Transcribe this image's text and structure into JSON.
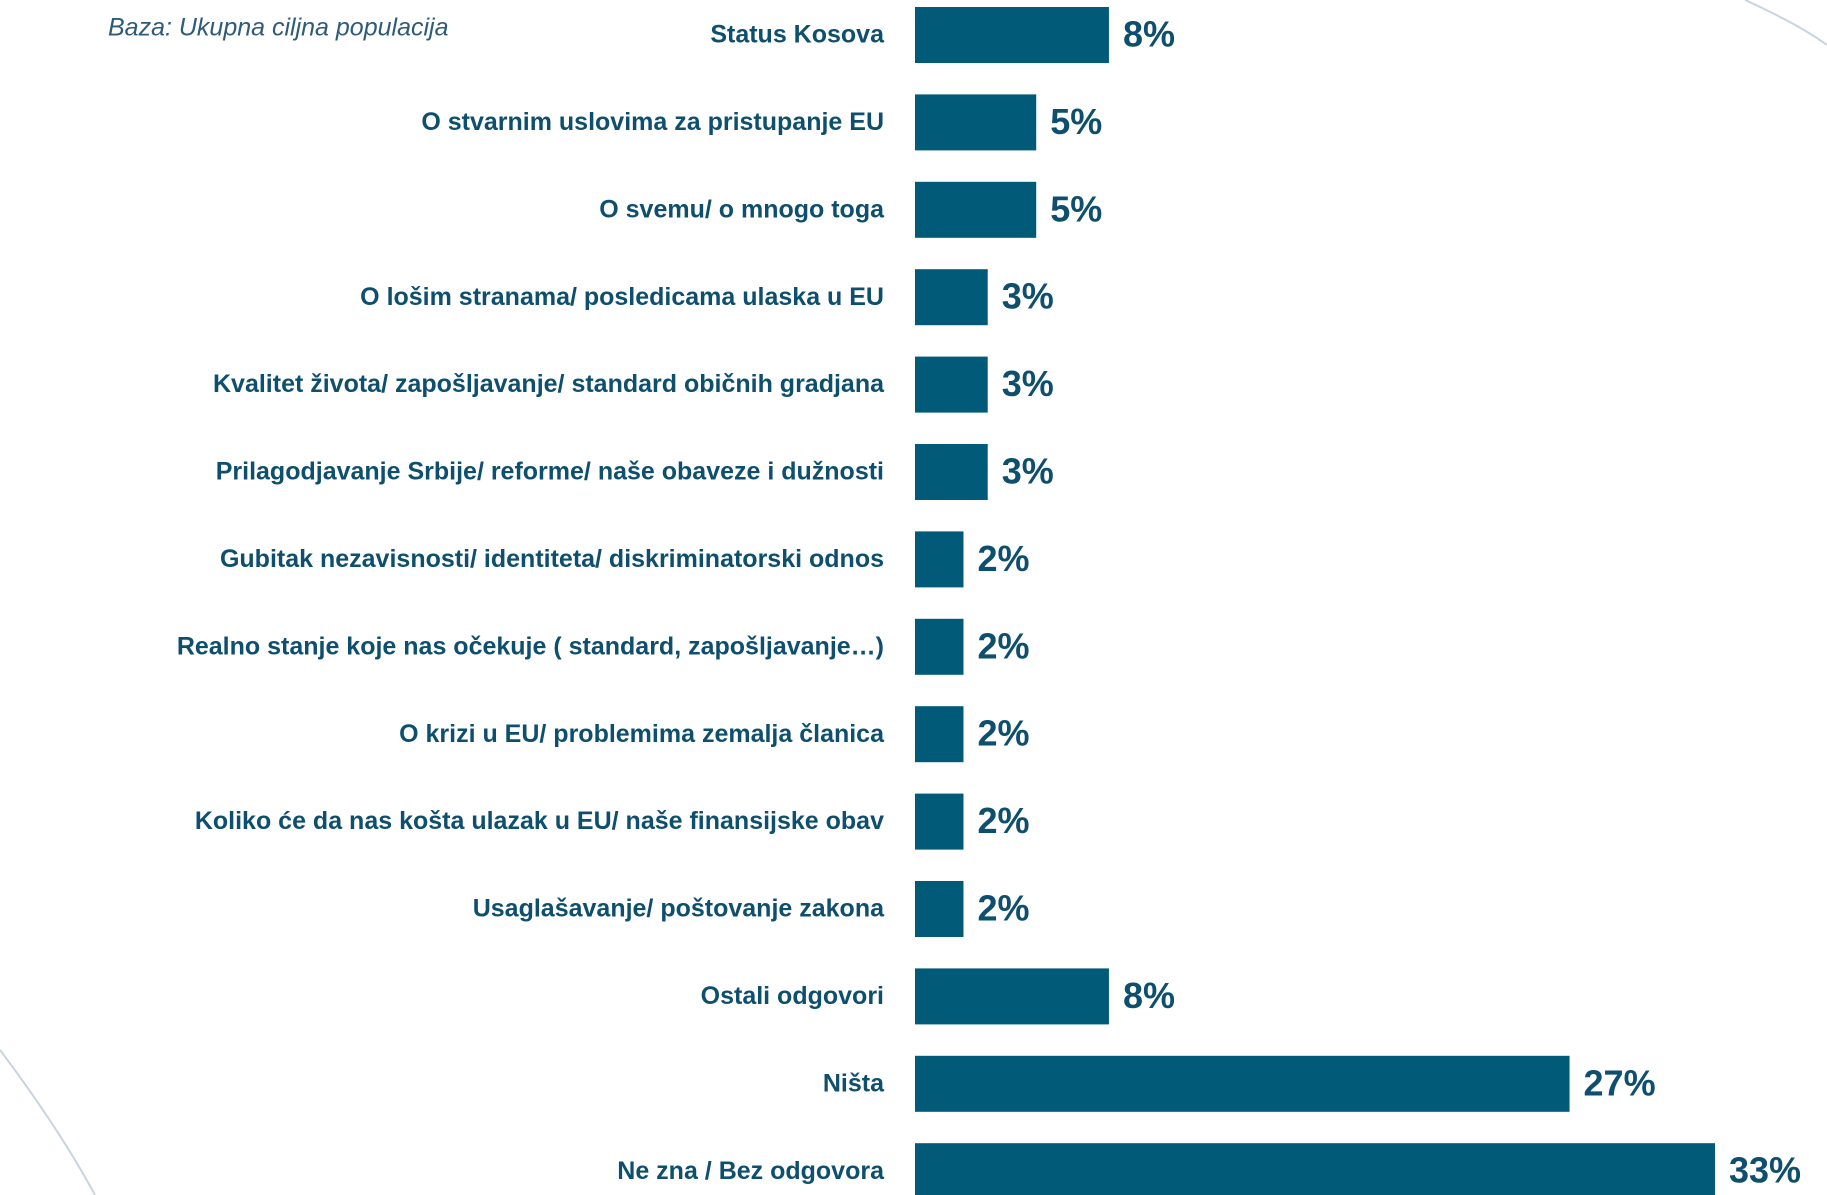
{
  "chart_data": {
    "type": "bar",
    "orientation": "horizontal",
    "subtitle": "Baza: Ukupna ciljna populacija",
    "categories": [
      "Status Kosova",
      "O stvarnim uslovima za pristupanje EU",
      "O svemu/ o mnogo toga",
      "O lošim stranama/ posledicama ulaska u EU",
      "Kvalitet života/ zapošljavanje/ standard običnih gradjana",
      "Prilagodjavanje Srbije/ reforme/ naše obaveze i dužnosti",
      "Gubitak nezavisnosti/ identiteta/ diskriminatorski odnos",
      "Realno stanje koje nas očekuje ( standard, zapošljavanje…)",
      "O krizi u EU/ problemima zemalja članica",
      "Koliko će da nas košta ulazak u EU/ naše finansijske obav",
      "Usaglašavanje/ poštovanje zakona",
      "Ostali odgovori",
      "Ništa",
      "Ne zna / Bez odgovora"
    ],
    "values": [
      8,
      5,
      5,
      3,
      3,
      3,
      2,
      2,
      2,
      2,
      2,
      8,
      27,
      33
    ],
    "value_labels": [
      "8%",
      "5%",
      "5%",
      "3%",
      "3%",
      "3%",
      "2%",
      "2%",
      "2%",
      "2%",
      "2%",
      "8%",
      "27%",
      "33%"
    ],
    "color": "#005a78"
  }
}
